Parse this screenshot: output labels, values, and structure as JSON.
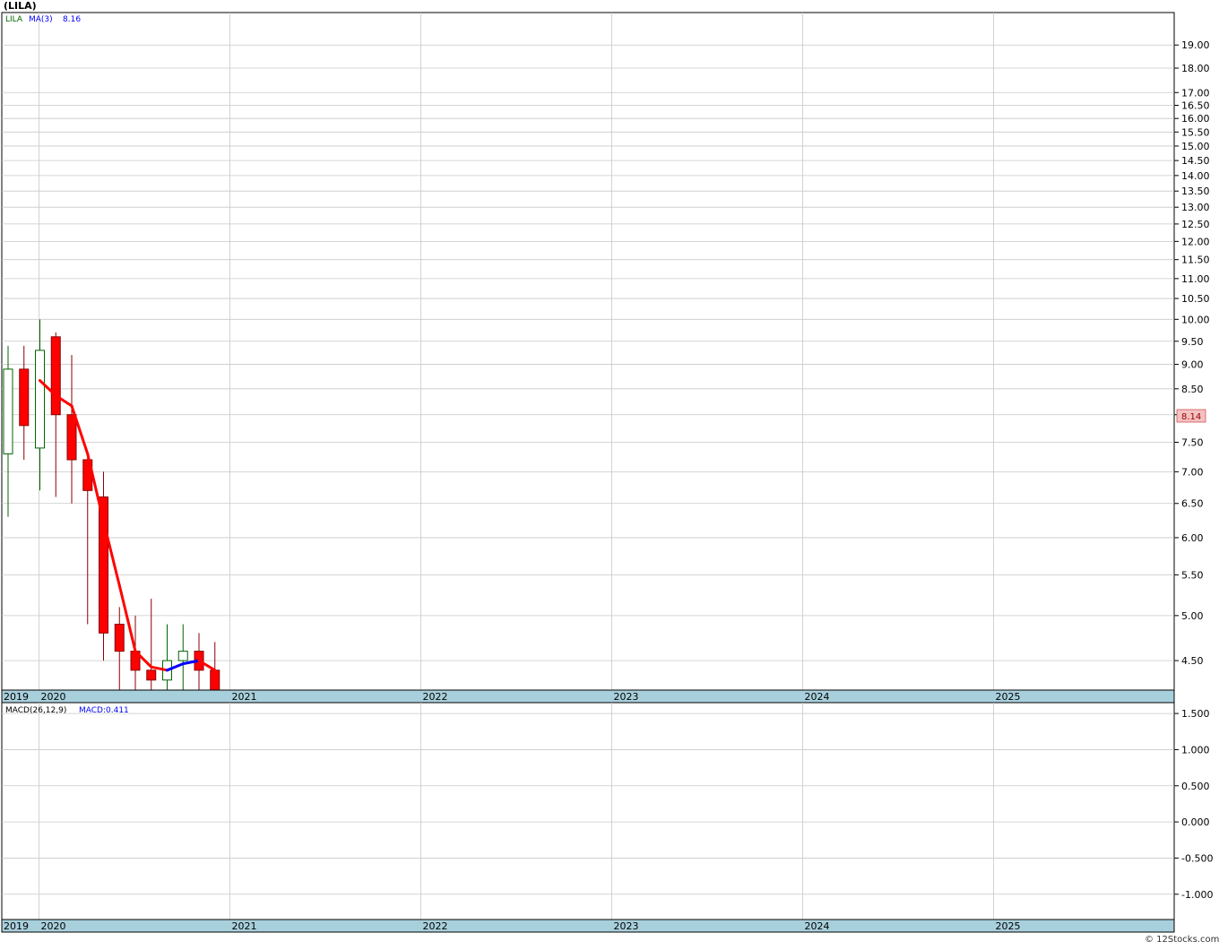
{
  "title": "(LILA)",
  "credit": "© 12Stocks.com",
  "price_legend": {
    "symbol": "LILA",
    "ma_label": "MA(3)",
    "ma_value": "8.16"
  },
  "last_price_tag": "8.14",
  "macd_legend": {
    "label": "MACD(26,12,9)",
    "value_label": "MACD:0.411"
  },
  "colors": {
    "up": "#006400",
    "down": "#ff0000",
    "ma_up": "#0000ff",
    "ma_down": "#ff0000",
    "axis_band": "#a8d0dc",
    "grid": "#c8c8c8",
    "price_tag_bg": "#f4c2c2"
  },
  "chart_data": [
    {
      "type": "candlestick",
      "scale": "log",
      "ylim": [
        4.2,
        20.5
      ],
      "yticks": [
        "4.50",
        "5.00",
        "5.50",
        "6.00",
        "6.50",
        "7.00",
        "7.50",
        "8.00",
        "8.50",
        "9.00",
        "9.50",
        "10.00",
        "10.50",
        "11.00",
        "11.50",
        "12.00",
        "12.50",
        "13.00",
        "13.50",
        "14.00",
        "14.50",
        "15.00",
        "15.50",
        "16.00",
        "16.50",
        "17.00",
        "18.00",
        "19.00"
      ],
      "x_labels": [
        "2019",
        "2020",
        "2021",
        "2022",
        "2023",
        "2024",
        "2025"
      ],
      "candles": [
        {
          "date": "2019-11",
          "open": 7.3,
          "high": 9.4,
          "low": 6.3,
          "close": 8.9
        },
        {
          "date": "2019-12",
          "open": 8.9,
          "high": 9.4,
          "low": 7.2,
          "close": 7.8
        },
        {
          "date": "2020-01",
          "open": 7.4,
          "high": 10.0,
          "low": 6.7,
          "close": 9.3
        },
        {
          "date": "2020-02",
          "open": 9.6,
          "high": 9.7,
          "low": 6.6,
          "close": 8.0
        },
        {
          "date": "2020-03",
          "open": 8.0,
          "high": 9.2,
          "low": 6.5,
          "close": 7.2
        },
        {
          "date": "2020-04",
          "open": 7.2,
          "high": 7.3,
          "low": 4.9,
          "close": 6.7
        },
        {
          "date": "2020-05",
          "open": 6.6,
          "high": 7.0,
          "low": 4.5,
          "close": 4.8
        },
        {
          "date": "2020-06",
          "open": 4.9,
          "high": 5.1,
          "low": 3.8,
          "close": 4.6
        },
        {
          "date": "2020-07",
          "open": 4.6,
          "high": 5.0,
          "low": 3.6,
          "close": 4.4
        },
        {
          "date": "2020-08",
          "open": 4.4,
          "high": 5.2,
          "low": 3.9,
          "close": 4.3
        },
        {
          "date": "2020-09",
          "open": 4.3,
          "high": 4.9,
          "low": 4.0,
          "close": 4.5
        },
        {
          "date": "2020-10",
          "open": 4.5,
          "high": 4.9,
          "low": 4.1,
          "close": 4.6
        },
        {
          "date": "2020-11",
          "open": 4.6,
          "high": 4.8,
          "low": 4.1,
          "close": 4.4
        },
        {
          "date": "2020-12",
          "open": 4.4,
          "high": 4.7,
          "low": 4.1,
          "close": 4.2
        }
      ]
    }
  ]
}
